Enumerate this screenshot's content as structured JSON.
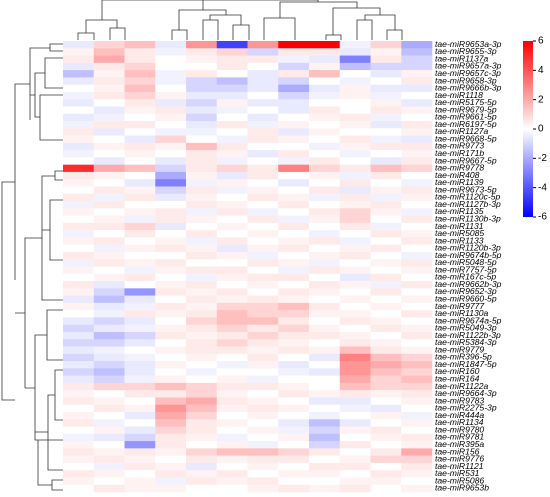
{
  "chart_data": {
    "type": "heatmap",
    "rows": [
      "tae-miR9653a-3p",
      "tae-miR9655-3p",
      "tae-miR1137a",
      "tae-miR9657a-3p",
      "tae-miR9657c-3p",
      "tae-miR9658-3p",
      "tae-miR9666b-3p",
      "tae-miR1118",
      "tae-miR5175-5p",
      "tae-miR9679-5p",
      "tae-miR9661-5p",
      "tae-miR6197-5p",
      "tae-miR1127a",
      "tae-miR9668-5p",
      "tae-miR9773",
      "tae-miR171b",
      "tae-miR9667-5p",
      "tae-miR9778",
      "tae-miR408",
      "tae-miR1139",
      "tae-miR9673-5p",
      "tae-miR1120c-5p",
      "tae-miR1127b-3p",
      "tae-miR1135",
      "tae-miR1130b-3p",
      "tae-miR1131",
      "tae-miR5085",
      "tae-miR1133",
      "tae-miR1120b-3p",
      "tae-miR9674b-5p",
      "tae-miR5048-5p",
      "tae-miR7757-5p",
      "tae-miR167c-5p",
      "tae-miR9662b-3p",
      "tae-miR9652-3p",
      "tae-miR9660-5p",
      "tae-miR9777",
      "tae-miR1130a",
      "tae-miR9674a-5p",
      "tae-miR5049-3p",
      "tae-miR1122b-3p",
      "tae-miR5384-3p",
      "tae-miR9779",
      "tae-miR396-5p",
      "tae-miR1847-5p",
      "tae-miR160",
      "tae-miR164",
      "tae-miR1122a",
      "tae-miR9664-3p",
      "tae-miR9783",
      "tae-miR2275-3p",
      "tae-miR444a",
      "tae-miR1134",
      "tae-miR9780",
      "tae-miR9781",
      "tae-miR395a",
      "tae-miR156",
      "tae-miR9776",
      "tae-miR1121",
      "tae-miR531",
      "tae-miR5086",
      "tae-miR9653b"
    ],
    "values": [
      [
        -0.5,
        1,
        1.5,
        -0.5,
        2.5,
        -4.5,
        2.5,
        6,
        6,
        -0.3,
        1,
        -2
      ],
      [
        0.3,
        1.5,
        0.5,
        -0.3,
        0.5,
        1,
        -1,
        0.5,
        0.5,
        -0.5,
        0.3,
        -1.5
      ],
      [
        0.5,
        2,
        0.5,
        0,
        0.3,
        0.5,
        0.5,
        -0.3,
        -0.5,
        -3,
        0.5,
        -1
      ],
      [
        -0.5,
        0.5,
        1,
        0,
        0,
        0.5,
        0,
        -1,
        0.3,
        -1.5,
        -1,
        -1
      ],
      [
        -1.5,
        0.3,
        1.5,
        -0.3,
        0.5,
        0,
        -0.5,
        0.5,
        1.5,
        0,
        -0.5,
        0.3
      ],
      [
        -0.5,
        0.5,
        1,
        -0.3,
        -1,
        -1.5,
        -0.5,
        -1,
        0,
        -0.3,
        0,
        0.5
      ],
      [
        0,
        0.3,
        1.5,
        0,
        -1,
        -1,
        -0.5,
        -2,
        -0.5,
        0.3,
        -0.5,
        -0.5
      ],
      [
        -0.3,
        0.5,
        1,
        0.3,
        -0.5,
        -0.5,
        0,
        -1,
        -0.3,
        0.3,
        -0.3,
        0
      ],
      [
        -0.5,
        0,
        0.5,
        -0.5,
        -1,
        0.3,
        -0.5,
        -0.5,
        0,
        0,
        0.3,
        -0.5
      ],
      [
        0,
        -0.5,
        0.3,
        0.5,
        -0.5,
        -0.3,
        0,
        -0.5,
        0.5,
        0,
        0.5,
        0.3
      ],
      [
        -0.5,
        -0.3,
        0,
        0.3,
        -1,
        0,
        -0.5,
        0,
        0.3,
        0.5,
        -0.3,
        0
      ],
      [
        -0.3,
        0.5,
        0.5,
        0,
        -0.5,
        0.5,
        -0.3,
        0.3,
        0,
        0.3,
        -0.5,
        0.5
      ],
      [
        0.5,
        -0.5,
        0,
        -0.3,
        -0.3,
        0,
        0.5,
        -0.5,
        0.3,
        0,
        0,
        0.3
      ],
      [
        0.3,
        0,
        -0.5,
        1,
        0,
        -0.3,
        0.5,
        0.3,
        0,
        0.5,
        -0.3,
        -0.5
      ],
      [
        -0.5,
        0.3,
        0.5,
        0.3,
        1.5,
        0.5,
        0,
        0,
        -0.3,
        0.3,
        0.5,
        0.5
      ],
      [
        -0.3,
        0,
        0.3,
        0,
        0.5,
        0.3,
        -0.5,
        0.5,
        0,
        -0.3,
        0,
        0.3
      ],
      [
        0,
        -0.5,
        0,
        -0.5,
        0.5,
        -0.3,
        0,
        -0.3,
        0.5,
        0,
        -0.5,
        0.5
      ],
      [
        5,
        2,
        1.5,
        -1,
        0.5,
        1,
        0.5,
        3,
        1,
        0.5,
        1.5,
        1
      ],
      [
        0.5,
        0.3,
        0,
        -2,
        0.3,
        -0.5,
        0.5,
        0,
        0.3,
        -0.3,
        0.5,
        0
      ],
      [
        0.3,
        0,
        -0.5,
        -3,
        -0.3,
        0.3,
        0,
        -0.5,
        0,
        0.5,
        0,
        -0.3
      ],
      [
        0,
        0.5,
        0.3,
        -1,
        0.5,
        -0.3,
        0.3,
        0,
        0.5,
        -0.5,
        0.3,
        0.5
      ],
      [
        0.5,
        -0.3,
        0.5,
        -0.5,
        0.3,
        0,
        0.5,
        0.3,
        -0.3,
        0.5,
        -0.3,
        0.3
      ],
      [
        -0.3,
        0.5,
        0,
        0,
        0.5,
        0.3,
        0,
        0.5,
        0,
        0.3,
        0.5,
        0
      ],
      [
        0.3,
        0,
        0.3,
        0.5,
        -0.3,
        0.5,
        -0.3,
        0,
        0.5,
        1,
        0.3,
        -0.3
      ],
      [
        0,
        0.3,
        -0.3,
        0.5,
        0.3,
        0,
        0.5,
        -0.3,
        0.3,
        1,
        0,
        0.5
      ],
      [
        0.5,
        0.5,
        1,
        -0.5,
        0,
        0.3,
        0,
        0.5,
        0,
        0.5,
        -0.3,
        0
      ],
      [
        -0.3,
        0,
        0.5,
        0,
        0.5,
        0,
        0.3,
        0,
        -0.3,
        0,
        0.5,
        0.3
      ],
      [
        0.3,
        0.5,
        0,
        0.3,
        -0.3,
        0.5,
        0,
        0.3,
        0.5,
        -0.3,
        0,
        0.5
      ],
      [
        0,
        -0.3,
        0.3,
        0.5,
        0.3,
        -0.5,
        0.3,
        0.5,
        0,
        0.3,
        0.5,
        0
      ],
      [
        0.5,
        0.3,
        0,
        0,
        0.5,
        0.3,
        -0.3,
        0,
        0.3,
        0.5,
        0,
        -0.3
      ],
      [
        -0.3,
        0.5,
        0.3,
        0.5,
        0,
        0,
        0.5,
        0.3,
        -0.3,
        0,
        0.3,
        0.5
      ],
      [
        0.3,
        0,
        -0.3,
        0.3,
        0.5,
        0.5,
        0,
        -0.3,
        0.5,
        0.3,
        0,
        0.3
      ],
      [
        0,
        0.3,
        0.5,
        0,
        -0.3,
        0.3,
        0.5,
        0.5,
        0,
        -0.5,
        0.5,
        0
      ],
      [
        0.5,
        -0.5,
        0,
        0.3,
        0.5,
        0,
        0.3,
        0,
        0.5,
        0.3,
        -0.3,
        0.5
      ],
      [
        0.3,
        -1,
        -2.5,
        0.5,
        0.3,
        0.5,
        0,
        0.5,
        0.3,
        0,
        0.5,
        0
      ],
      [
        -0.5,
        -1.5,
        -0.5,
        0,
        0.5,
        0.3,
        0.5,
        0.3,
        0,
        0.3,
        0,
        0.3
      ],
      [
        0.3,
        -0.5,
        -0.3,
        0.5,
        0.3,
        1,
        1,
        1.5,
        0.5,
        0,
        0.3,
        0
      ],
      [
        0,
        -0.3,
        0.5,
        0.3,
        0.5,
        1.5,
        1,
        1,
        0.3,
        0.3,
        0,
        0.5
      ],
      [
        -0.5,
        -1,
        -0.5,
        0,
        1,
        1.5,
        1.5,
        0.5,
        0,
        0.5,
        0.3,
        0
      ],
      [
        -1,
        -0.5,
        -0.3,
        0.3,
        0.5,
        1,
        0.5,
        1,
        0.3,
        0,
        0.5,
        0.3
      ],
      [
        -0.5,
        -1.5,
        -1,
        0.5,
        0.3,
        0.5,
        1,
        0.5,
        0.5,
        0.3,
        0,
        0.5
      ],
      [
        -1,
        -1,
        -0.5,
        0,
        0.5,
        1,
        0.5,
        0.3,
        0,
        0.5,
        0.3,
        0
      ],
      [
        -0.5,
        -0.3,
        0,
        0.3,
        0.5,
        0.5,
        0.3,
        0.5,
        0.3,
        1.5,
        0.5,
        0.3
      ],
      [
        -1,
        -0.5,
        -0.3,
        0,
        0.3,
        0,
        0.5,
        0,
        -0.5,
        3,
        1.5,
        1
      ],
      [
        -0.5,
        -1,
        -0.5,
        0.3,
        0,
        -0.3,
        0.3,
        -0.5,
        0,
        2.5,
        2,
        1.5
      ],
      [
        -1,
        -1.5,
        -0.5,
        0,
        -0.3,
        0,
        0,
        -0.3,
        -0.5,
        2.5,
        1.5,
        1
      ],
      [
        -0.5,
        -1,
        -0.3,
        0.3,
        0,
        0.3,
        -0.3,
        0,
        0,
        2,
        1,
        1.5
      ],
      [
        0.5,
        1,
        1,
        1.5,
        1,
        0.5,
        0.5,
        0.3,
        0,
        1.5,
        1,
        1
      ],
      [
        0.3,
        0,
        0.5,
        0.5,
        1,
        0.3,
        0,
        0.5,
        0.3,
        0.5,
        0.3,
        0.5
      ],
      [
        0.5,
        0.3,
        0,
        1.5,
        2,
        0.5,
        0.3,
        0,
        -0.5,
        -0.5,
        0,
        0.3
      ],
      [
        0,
        0.5,
        0.3,
        2.5,
        1.5,
        0.3,
        0.5,
        0.3,
        0,
        -0.3,
        -0.5,
        0
      ],
      [
        0.3,
        0,
        -0.5,
        2,
        1,
        0,
        0.3,
        0,
        -0.3,
        0,
        0.3,
        -0.3
      ],
      [
        0.5,
        -0.3,
        0,
        1.5,
        0.5,
        0.3,
        0,
        -0.5,
        -1.5,
        -0.5,
        0,
        0.3
      ],
      [
        0,
        0.3,
        -0.5,
        1,
        0.5,
        0,
        0.3,
        -0.3,
        -1,
        0.3,
        0.5,
        0
      ],
      [
        -0.3,
        -0.5,
        -1,
        0.5,
        0.3,
        -0.3,
        0,
        0.3,
        -1.5,
        0,
        0.3,
        0.5
      ],
      [
        0.3,
        0,
        -2.5,
        0.5,
        0,
        0.3,
        -0.3,
        0,
        -1,
        0.5,
        0,
        0.3
      ],
      [
        0.5,
        0.3,
        0.5,
        0.3,
        1,
        1.5,
        1.5,
        1,
        0.5,
        0,
        0.5,
        2
      ],
      [
        0.3,
        0.5,
        0.3,
        0,
        0.5,
        0.3,
        0.5,
        0.5,
        0,
        0.3,
        1,
        1
      ],
      [
        0,
        -0.3,
        0.5,
        0.3,
        -0.5,
        0,
        0.3,
        0,
        0.5,
        0.5,
        0,
        0.5
      ],
      [
        0.5,
        0.3,
        0,
        0.5,
        0.3,
        0.5,
        0,
        0.3,
        0.3,
        0,
        0.5,
        0.3
      ],
      [
        0.3,
        0,
        0.3,
        -0.3,
        0.5,
        0.3,
        0.5,
        0,
        0,
        0.3,
        0.3,
        0
      ],
      [
        0,
        0.5,
        0.3,
        0.3,
        0,
        0,
        0.3,
        0.5,
        0.3,
        0.5,
        0,
        0.3
      ]
    ],
    "vlim": [
      -6,
      6
    ],
    "ticks": [
      6,
      4,
      2,
      0,
      -2,
      -4,
      -6
    ],
    "colors": [
      "#0000ff",
      "#ffffff",
      "#ff0000"
    ]
  }
}
